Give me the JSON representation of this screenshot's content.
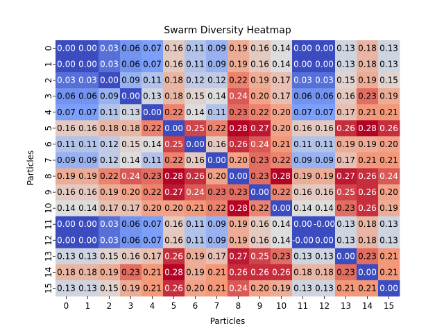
{
  "chart_data": {
    "type": "heatmap",
    "title": "Swarm Diversity Heatmap",
    "xlabel": "Particles",
    "ylabel": "Particles",
    "x_ticks": [
      "0",
      "1",
      "2",
      "3",
      "4",
      "5",
      "6",
      "7",
      "8",
      "9",
      "10",
      "11",
      "12",
      "13",
      "14",
      "15"
    ],
    "y_ticks": [
      "0",
      "1",
      "2",
      "3",
      "4",
      "5",
      "6",
      "7",
      "8",
      "9",
      "10",
      "11",
      "12",
      "13",
      "14",
      "15"
    ],
    "colormap": "coolwarm",
    "vmin": 0.0,
    "vmax": 0.28,
    "colorbar": false,
    "value_format": "2 decimals",
    "values": [
      [
        0.0,
        0.0,
        0.03,
        0.06,
        0.07,
        0.16,
        0.11,
        0.09,
        0.19,
        0.16,
        0.14,
        0.0,
        0.0,
        0.13,
        0.18,
        0.13
      ],
      [
        0.0,
        0.0,
        0.03,
        0.06,
        0.07,
        0.16,
        0.11,
        0.09,
        0.19,
        0.16,
        0.14,
        0.0,
        0.0,
        0.13,
        0.18,
        0.13
      ],
      [
        0.03,
        0.03,
        0.0,
        0.09,
        0.11,
        0.18,
        0.12,
        0.12,
        0.22,
        0.19,
        0.17,
        0.03,
        0.03,
        0.15,
        0.19,
        0.15
      ],
      [
        0.06,
        0.06,
        0.09,
        0.0,
        0.13,
        0.18,
        0.15,
        0.14,
        0.24,
        0.2,
        0.17,
        0.06,
        0.06,
        0.16,
        0.23,
        0.19
      ],
      [
        0.07,
        0.07,
        0.11,
        0.13,
        0.0,
        0.22,
        0.14,
        0.11,
        0.23,
        0.22,
        0.2,
        0.07,
        0.07,
        0.17,
        0.21,
        0.21
      ],
      [
        0.16,
        0.16,
        0.18,
        0.18,
        0.22,
        0.0,
        0.25,
        0.22,
        0.28,
        0.27,
        0.2,
        0.16,
        0.16,
        0.26,
        0.28,
        0.26
      ],
      [
        0.11,
        0.11,
        0.12,
        0.15,
        0.14,
        0.25,
        0.0,
        0.16,
        0.26,
        0.24,
        0.21,
        0.11,
        0.11,
        0.19,
        0.19,
        0.2
      ],
      [
        0.09,
        0.09,
        0.12,
        0.14,
        0.11,
        0.22,
        0.16,
        0.0,
        0.2,
        0.23,
        0.22,
        0.09,
        0.09,
        0.17,
        0.21,
        0.21
      ],
      [
        0.19,
        0.19,
        0.22,
        0.24,
        0.23,
        0.28,
        0.26,
        0.2,
        0.0,
        0.23,
        0.28,
        0.19,
        0.19,
        0.27,
        0.26,
        0.24
      ],
      [
        0.16,
        0.16,
        0.19,
        0.2,
        0.22,
        0.27,
        0.24,
        0.23,
        0.23,
        0.0,
        0.22,
        0.16,
        0.16,
        0.25,
        0.26,
        0.2
      ],
      [
        0.14,
        0.14,
        0.17,
        0.17,
        0.2,
        0.2,
        0.21,
        0.22,
        0.28,
        0.22,
        0.0,
        0.14,
        0.14,
        0.23,
        0.26,
        0.19
      ],
      [
        0.0,
        0.0,
        0.03,
        0.06,
        0.07,
        0.16,
        0.11,
        0.09,
        0.19,
        0.16,
        0.14,
        0.0,
        -0.0,
        0.13,
        0.18,
        0.13
      ],
      [
        0.0,
        0.0,
        0.03,
        0.06,
        0.07,
        0.16,
        0.11,
        0.09,
        0.19,
        0.16,
        0.14,
        -0.0,
        0.0,
        0.13,
        0.18,
        0.13
      ],
      [
        0.13,
        0.13,
        0.15,
        0.16,
        0.17,
        0.26,
        0.19,
        0.17,
        0.27,
        0.25,
        0.23,
        0.13,
        0.13,
        0.0,
        0.23,
        0.21
      ],
      [
        0.18,
        0.18,
        0.19,
        0.23,
        0.21,
        0.28,
        0.19,
        0.21,
        0.26,
        0.26,
        0.26,
        0.18,
        0.18,
        0.23,
        0.0,
        0.21
      ],
      [
        0.13,
        0.13,
        0.15,
        0.19,
        0.21,
        0.26,
        0.2,
        0.21,
        0.24,
        0.2,
        0.19,
        0.13,
        0.13,
        0.21,
        0.21,
        0.0
      ]
    ]
  }
}
